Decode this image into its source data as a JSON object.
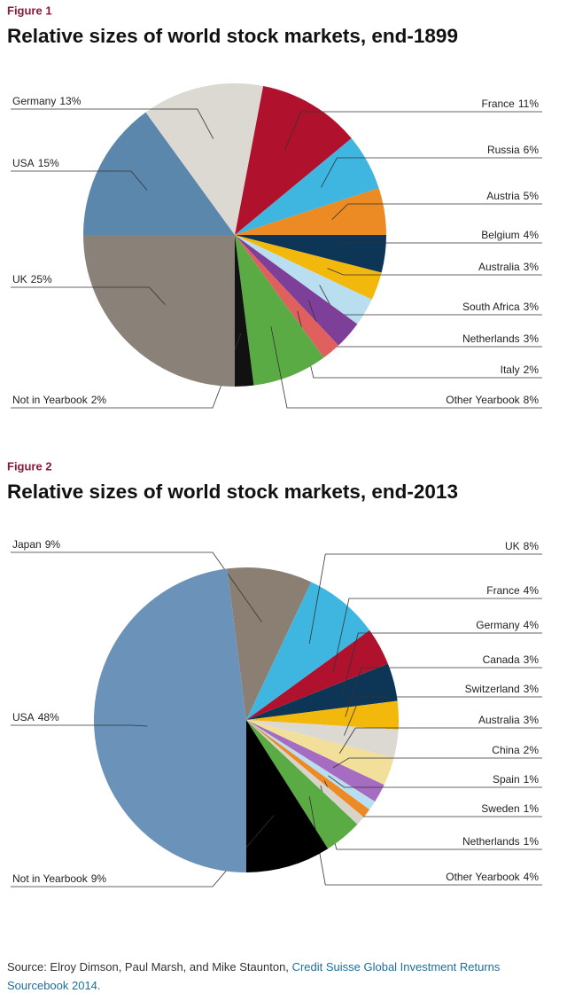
{
  "chart_data": [
    {
      "type": "pie",
      "figure_label": "Figure 1",
      "title": "Relative sizes of world stock markets, end-1899",
      "categories": [
        "France",
        "Russia",
        "Austria",
        "Belgium",
        "Australia",
        "South Africa",
        "Netherlands",
        "Italy",
        "Other Yearbook",
        "Not in Yearbook",
        "UK",
        "USA",
        "Germany"
      ],
      "values": [
        11,
        6,
        5,
        4,
        3,
        3,
        3,
        2,
        8,
        2,
        25,
        15,
        13
      ],
      "value_labels": [
        "11%",
        "6%",
        "5%",
        "4%",
        "3%",
        "3%",
        "3%",
        "2%",
        "8%",
        "2%",
        "25%",
        "15%",
        "13%"
      ],
      "colors": [
        "#b0122e",
        "#3fb6e0",
        "#ec8a24",
        "#0d3556",
        "#f3b80c",
        "#b9def0",
        "#7d3f98",
        "#e0605e",
        "#5bab45",
        "#111111",
        "#8a8178",
        "#5b87ad",
        "#dcd9d3"
      ]
    },
    {
      "type": "pie",
      "figure_label": "Figure 2",
      "title": "Relative sizes of world stock markets, end-2013",
      "categories": [
        "Japan",
        "UK",
        "France",
        "Germany",
        "Canada",
        "Switzerland",
        "Australia",
        "China",
        "Spain",
        "Sweden",
        "Netherlands",
        "Other Yearbook",
        "Not in Yearbook",
        "USA"
      ],
      "values": [
        9,
        8,
        4,
        4,
        3,
        3,
        3,
        2,
        1,
        1,
        1,
        4,
        9,
        48
      ],
      "value_labels": [
        "9%",
        "8%",
        "4%",
        "4%",
        "3%",
        "3%",
        "3%",
        "2%",
        "1%",
        "1%",
        "1%",
        "4%",
        "9%",
        "48%"
      ],
      "colors": [
        "#8a7f72",
        "#3fb6e0",
        "#b0122e",
        "#0d3556",
        "#f3b80c",
        "#dcd9d3",
        "#f2e09a",
        "#a56cc1",
        "#b9def0",
        "#ec8a24",
        "#d8d4cc",
        "#5bab45",
        "#000000",
        "#6b92b8"
      ]
    }
  ],
  "source": {
    "text": "Source: Elroy Dimson, Paul Marsh, and Mike Staunton,",
    "link": "Credit Suisse Global Investment Returns Sourcebook 2014."
  }
}
